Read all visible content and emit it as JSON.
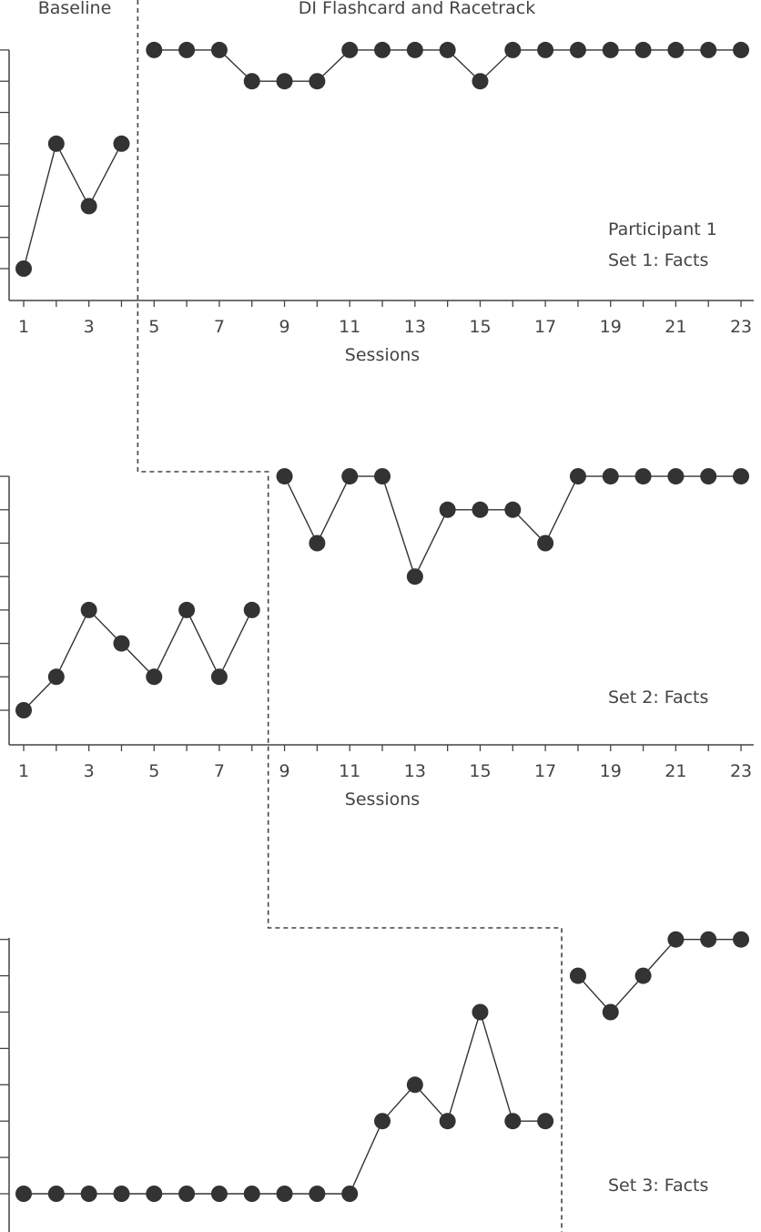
{
  "phase_labels": {
    "baseline": "Baseline",
    "intervention": "DI Flashcard and Racetrack"
  },
  "colors": {
    "ink": "#333333",
    "text": "#444444",
    "background": "#ffffff"
  },
  "chart_data": [
    {
      "type": "line",
      "panel": "top",
      "annotations": [
        "Participant 1",
        "Set 1: Facts"
      ],
      "xlabel": "Sessions",
      "x_ticks": [
        "1",
        "3",
        "5",
        "7",
        "9",
        "11",
        "13",
        "15",
        "17",
        "19",
        "21",
        "23"
      ],
      "y_minor_ticks": 8,
      "xlim": [
        1,
        23
      ],
      "ylim": [
        0,
        8
      ],
      "phase_change_after_session": 4,
      "series": [
        {
          "phase": "Baseline",
          "x": [
            1,
            2,
            3,
            4
          ],
          "y": [
            1,
            5,
            3,
            5
          ]
        },
        {
          "phase": "DI Flashcard and Racetrack",
          "x": [
            5,
            6,
            7,
            8,
            9,
            10,
            11,
            12,
            13,
            14,
            15,
            16,
            17,
            18,
            19,
            20,
            21,
            22,
            23
          ],
          "y": [
            8,
            8,
            8,
            7,
            7,
            7,
            8,
            8,
            8,
            8,
            7,
            8,
            8,
            8,
            8,
            8,
            8,
            8,
            8
          ]
        }
      ]
    },
    {
      "type": "line",
      "panel": "middle",
      "annotations": [
        "Set 2: Facts"
      ],
      "xlabel": "Sessions",
      "x_ticks": [
        "1",
        "3",
        "5",
        "7",
        "9",
        "11",
        "13",
        "15",
        "17",
        "19",
        "21",
        "23"
      ],
      "y_minor_ticks": 8,
      "xlim": [
        1,
        23
      ],
      "ylim": [
        0,
        8
      ],
      "phase_change_after_session": 8,
      "series": [
        {
          "phase": "Baseline",
          "x": [
            1,
            2,
            3,
            4,
            5,
            6,
            7,
            8
          ],
          "y": [
            1,
            2,
            4,
            3,
            2,
            4,
            2,
            4
          ]
        },
        {
          "phase": "DI Flashcard and Racetrack",
          "x": [
            9,
            10,
            11,
            12,
            13,
            14,
            15,
            16,
            17,
            18,
            19,
            20,
            21,
            22,
            23
          ],
          "y": [
            8,
            6,
            8,
            8,
            5,
            7,
            7,
            7,
            6,
            8,
            8,
            8,
            8,
            8,
            8
          ]
        }
      ]
    },
    {
      "type": "line",
      "panel": "bottom",
      "annotations": [
        "Set 3: Facts"
      ],
      "xlabel": "",
      "x_ticks": [],
      "y_minor_ticks": 8,
      "xlim": [
        1,
        23
      ],
      "ylim": [
        0,
        8
      ],
      "phase_change_after_session": 17,
      "series": [
        {
          "phase": "Baseline",
          "x": [
            1,
            2,
            3,
            4,
            5,
            6,
            7,
            8,
            9,
            10,
            11,
            12,
            13,
            14,
            15,
            16,
            17
          ],
          "y": [
            1,
            1,
            1,
            1,
            1,
            1,
            1,
            1,
            1,
            1,
            1,
            3,
            4,
            3,
            6,
            3,
            3
          ]
        },
        {
          "phase": "DI Flashcard and Racetrack",
          "x": [
            18,
            19,
            20,
            21,
            22,
            23
          ],
          "y": [
            7,
            6,
            7,
            8,
            8,
            8
          ]
        }
      ]
    }
  ]
}
